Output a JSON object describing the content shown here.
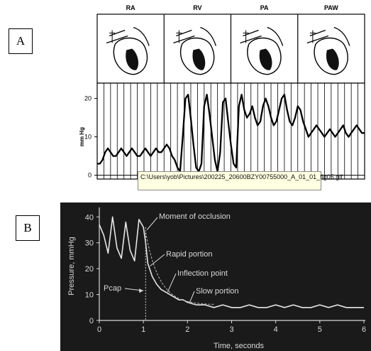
{
  "panel_a": {
    "label": "A",
    "chart_data": {
      "type": "line",
      "columns": [
        "RA",
        "RV",
        "PA",
        "PAW"
      ],
      "ylabel": "mm Hg",
      "yticks": [
        0,
        10,
        20
      ],
      "ylim": [
        -1,
        24
      ],
      "grid": true,
      "series": [
        {
          "x": [
            0,
            0.3,
            0.6,
            0.9,
            1.2,
            1.5,
            1.8,
            2.1,
            2.4,
            2.7,
            3.0,
            3.3,
            3.6,
            3.9,
            4.2,
            4.5,
            4.8,
            5.1,
            5.4,
            5.7,
            6.0,
            6.3,
            6.6,
            6.9,
            7.2,
            7.5,
            7.8,
            8.1,
            8.4,
            8.7,
            9.0,
            9.3,
            9.6,
            9.9,
            10.2,
            10.5,
            10.8,
            11.1,
            11.4,
            11.7,
            12.0,
            12.3,
            12.6,
            12.9,
            13.2,
            13.5,
            13.8,
            14.1,
            14.4,
            14.7,
            15.0,
            15.3,
            15.6,
            15.9,
            16.2,
            16.5,
            16.8,
            17.1,
            17.4,
            17.7,
            18.0,
            18.3,
            18.6,
            18.9,
            19.2,
            19.5,
            19.8,
            20.1,
            20.4,
            20.7,
            21.0,
            21.3,
            21.6,
            21.9,
            22.2,
            22.5,
            22.8,
            23.1,
            23.4,
            23.7,
            24.0,
            24.3,
            24.6,
            24.9,
            25.2,
            25.5,
            25.8,
            26.1,
            26.4,
            26.7,
            27.0,
            27.3,
            27.6,
            27.9,
            28.2,
            28.5,
            28.8,
            29.1,
            29.4,
            29.7,
            30.0
          ],
          "values": [
            3,
            3,
            4,
            6,
            7,
            6,
            5,
            5,
            6,
            7,
            6,
            5,
            6,
            7,
            6,
            5,
            5,
            6,
            7,
            6,
            5,
            6,
            7,
            6,
            6,
            7,
            8,
            7,
            5,
            4,
            2,
            1,
            10,
            20,
            21,
            15,
            8,
            2,
            1,
            3,
            18,
            21,
            16,
            10,
            4,
            1,
            6,
            19,
            20,
            14,
            8,
            3,
            2,
            18,
            21,
            17,
            15,
            16,
            18,
            15,
            13,
            14,
            18,
            20,
            18,
            15,
            13,
            14,
            17,
            20,
            21,
            17,
            14,
            13,
            15,
            18,
            17,
            14,
            12,
            10,
            11,
            12,
            13,
            12,
            11,
            10,
            11,
            12,
            11,
            10,
            11,
            12,
            13,
            11,
            10,
            11,
            12,
            13,
            12,
            11,
            11
          ]
        }
      ]
    }
  },
  "tooltip": {
    "text": "C:\\Users\\yob\\Pictures\\200225_20600BZY00755000_A_01_01_fig05.gif"
  },
  "panel_b": {
    "label": "B",
    "chart_data": {
      "type": "line",
      "xlabel": "Time, seconds",
      "ylabel": "Pressure, mmHg",
      "xlim": [
        0,
        6
      ],
      "ylim": [
        0,
        42
      ],
      "xticks": [
        0,
        1,
        2,
        3,
        4,
        5,
        6
      ],
      "yticks": [
        0,
        10,
        20,
        30,
        40
      ],
      "annotations": [
        "Moment of occlusion",
        "Rapid portion",
        "Inflection point",
        "Slow portion",
        "Pcap"
      ],
      "series": [
        {
          "x": [
            0,
            0.1,
            0.2,
            0.3,
            0.4,
            0.5,
            0.6,
            0.7,
            0.8,
            0.9,
            1.0,
            1.05,
            1.1,
            1.2,
            1.3,
            1.4,
            1.5,
            1.6,
            1.7,
            1.8,
            1.9,
            2.0,
            2.2,
            2.4,
            2.6,
            2.8,
            3.0,
            3.2,
            3.4,
            3.6,
            3.8,
            4.0,
            4.2,
            4.4,
            4.6,
            4.8,
            5.0,
            5.2,
            5.4,
            5.6,
            5.8,
            6.0
          ],
          "values": [
            37,
            33,
            26,
            40,
            28,
            24,
            38,
            27,
            23,
            39,
            36,
            30,
            22,
            17,
            14,
            12,
            11,
            10,
            9,
            8,
            8,
            7,
            6,
            6,
            5,
            6,
            5,
            5,
            6,
            5,
            5,
            6,
            5,
            6,
            5,
            5,
            6,
            5,
            6,
            5,
            5,
            5
          ]
        }
      ]
    }
  }
}
